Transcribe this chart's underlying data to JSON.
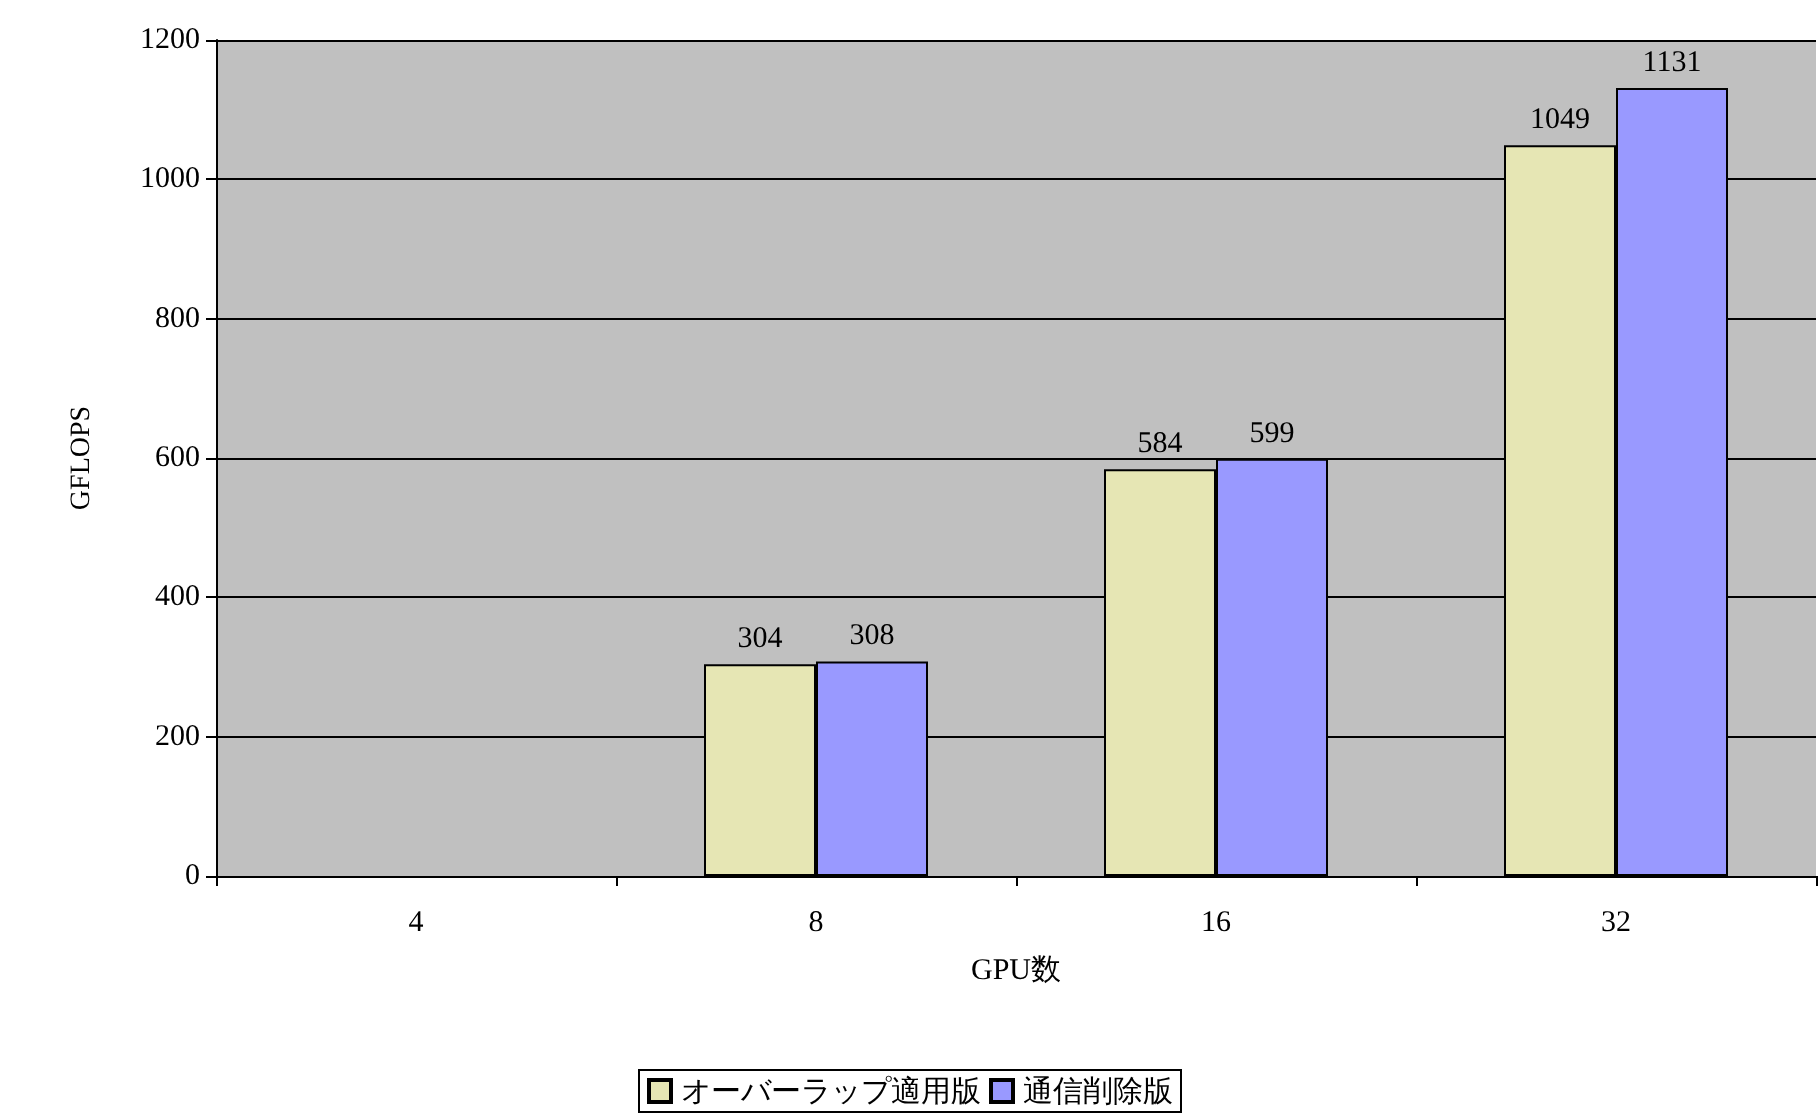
{
  "chart_data": {
    "type": "bar",
    "xlabel": "GPU数",
    "ylabel": "GFLOPS",
    "categories": [
      "4",
      "8",
      "16",
      "32"
    ],
    "series": [
      {
        "name": "オーバーラップ適用版",
        "color": "#e6e6b4",
        "values": [
          null,
          304,
          584,
          1049
        ]
      },
      {
        "name": "通信削除版",
        "color": "#9999ff",
        "values": [
          null,
          308,
          599,
          1131
        ]
      }
    ],
    "ylim": [
      0,
      1200
    ],
    "yticks": [
      0,
      200,
      400,
      600,
      800,
      1000,
      1200
    ],
    "grid": "y",
    "legend": "bottom",
    "data_labels": true
  }
}
